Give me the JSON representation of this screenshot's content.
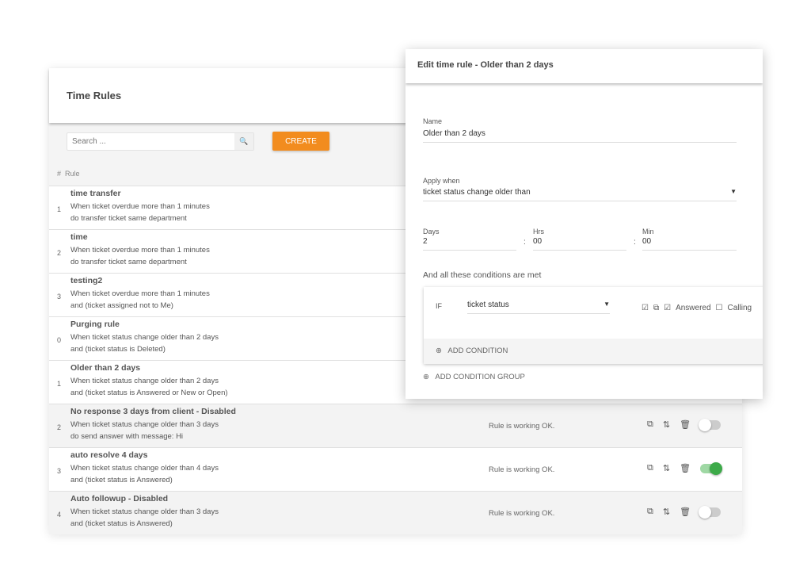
{
  "panel": {
    "title": "Time Rules",
    "search_placeholder": "Search ...",
    "create_label": "CREATE",
    "col_num": "#",
    "col_rule": "Rule"
  },
  "rules": [
    {
      "num": "1",
      "title": "time transfer",
      "l1": "When ticket overdue more than 1 minutes",
      "l2": "do transfer ticket same department"
    },
    {
      "num": "2",
      "title": "time",
      "l1": "When ticket overdue more than 1 minutes",
      "l2": "do transfer ticket same department"
    },
    {
      "num": "3",
      "title": "testing2",
      "l1": "When ticket overdue more than 1 minutes",
      "l2": "and (ticket assigned not to Me)"
    },
    {
      "num": "0",
      "title": "Purging rule",
      "l1": "When ticket status change older than 2 days",
      "l2": "and (ticket status is Deleted)"
    },
    {
      "num": "1",
      "title": "Older than 2 days",
      "l1": "When ticket status change older than 2 days",
      "l2": "and (ticket status is Answered or New or Open)"
    },
    {
      "num": "2",
      "title": "No response 3 days from client - Disabled",
      "l1": "When ticket status change older than 3 days",
      "l2": "do send answer with message: Hi",
      "status": "Rule is working OK.",
      "enabled": false
    },
    {
      "num": "3",
      "title": "auto resolve 4 days",
      "l1": "When ticket status change older than 4 days",
      "l2": "and (ticket status is Answered)",
      "status": "Rule is working OK.",
      "enabled": true
    },
    {
      "num": "4",
      "title": "Auto followup - Disabled",
      "l1": "When ticket status change older than 3 days",
      "l2": "and (ticket status is Answered)",
      "status": "Rule is working OK.",
      "enabled": false
    }
  ],
  "modal": {
    "title": "Edit time rule - Older than 2 days",
    "name_label": "Name",
    "name_value": "Older than 2 days",
    "apply_label": "Apply when",
    "apply_value": "ticket status change older than",
    "days_label": "Days",
    "days_value": "2",
    "hrs_label": "Hrs",
    "hrs_value": "00",
    "min_label": "Min",
    "min_value": "00",
    "conditions_label": "And all these conditions are met",
    "if_label": "IF",
    "field_value": "ticket status",
    "opt_answered": "Answered",
    "opt_calling": "Calling",
    "add_condition": "ADD CONDITION",
    "add_group": "ADD CONDITION GROUP"
  },
  "colors": {
    "accent": "#f28c1e",
    "toggle_on": "#3daa49"
  }
}
